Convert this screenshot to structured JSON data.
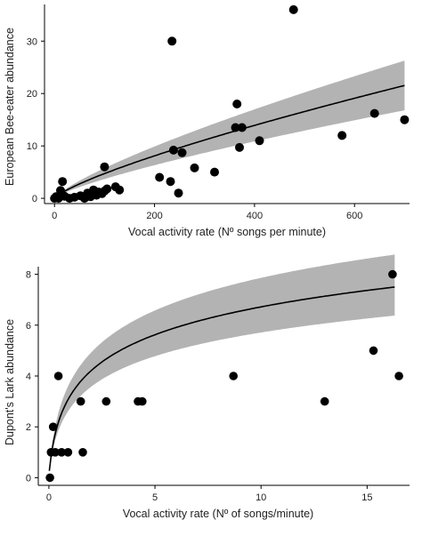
{
  "chart_data": [
    {
      "type": "scatter",
      "xlabel": "Vocal activity rate (Nº songs per minute)",
      "ylabel": "European Bee-eater abundance",
      "xlim": [
        -20,
        710
      ],
      "ylim": [
        -1,
        37
      ],
      "x_ticks": [
        0,
        200,
        400,
        600
      ],
      "y_ticks": [
        0,
        10,
        20,
        30
      ],
      "grid": false,
      "colors": {
        "points": "#000000",
        "band": "#b3b3b3",
        "line": "#000000"
      },
      "fit": {
        "model": "power",
        "a": 0.13,
        "b": 0.78,
        "band_lower_factor": 0.78,
        "band_upper_factor": 1.22
      },
      "points": [
        {
          "x": 0,
          "y": 0
        },
        {
          "x": 3,
          "y": 0.3
        },
        {
          "x": 8,
          "y": 0
        },
        {
          "x": 12,
          "y": 1.5
        },
        {
          "x": 16,
          "y": 3.2
        },
        {
          "x": 20,
          "y": 0.4
        },
        {
          "x": 30,
          "y": 0
        },
        {
          "x": 40,
          "y": 0.2
        },
        {
          "x": 52,
          "y": 0.5
        },
        {
          "x": 60,
          "y": 0
        },
        {
          "x": 66,
          "y": 1
        },
        {
          "x": 72,
          "y": 0.3
        },
        {
          "x": 78,
          "y": 1.6
        },
        {
          "x": 84,
          "y": 0.6
        },
        {
          "x": 88,
          "y": 1.2
        },
        {
          "x": 95,
          "y": 0.9
        },
        {
          "x": 100,
          "y": 1.4
        },
        {
          "x": 100,
          "y": 6
        },
        {
          "x": 105,
          "y": 1.8
        },
        {
          "x": 122,
          "y": 2.2
        },
        {
          "x": 130,
          "y": 1.6
        },
        {
          "x": 210,
          "y": 4
        },
        {
          "x": 232,
          "y": 3.2
        },
        {
          "x": 235,
          "y": 30
        },
        {
          "x": 238,
          "y": 9.2
        },
        {
          "x": 248,
          "y": 1
        },
        {
          "x": 255,
          "y": 8.7
        },
        {
          "x": 280,
          "y": 5.8
        },
        {
          "x": 320,
          "y": 5
        },
        {
          "x": 362,
          "y": 13.5
        },
        {
          "x": 365,
          "y": 18
        },
        {
          "x": 370,
          "y": 9.7
        },
        {
          "x": 375,
          "y": 13.5
        },
        {
          "x": 410,
          "y": 11
        },
        {
          "x": 478,
          "y": 36
        },
        {
          "x": 575,
          "y": 12
        },
        {
          "x": 640,
          "y": 16.2
        },
        {
          "x": 700,
          "y": 15
        }
      ]
    },
    {
      "type": "scatter",
      "xlabel": "Vocal activity rate (Nº of songs/minute)",
      "ylabel": "Dupont's Lark abundance",
      "xlim": [
        -0.5,
        17
      ],
      "ylim": [
        -0.3,
        8.3
      ],
      "x_ticks": [
        0,
        5,
        10,
        15
      ],
      "y_ticks": [
        0,
        2,
        4,
        6,
        8
      ],
      "grid": false,
      "colors": {
        "points": "#000000",
        "band": "#b3b3b3",
        "line": "#000000"
      },
      "fit": {
        "model": "log",
        "a": 0.09,
        "b": 1.62,
        "c": 0.17,
        "band_lower_factor": 0.85,
        "band_upper_factor": 1.17
      },
      "points": [
        {
          "x": 0.05,
          "y": 0
        },
        {
          "x": 0.1,
          "y": 1
        },
        {
          "x": 0.2,
          "y": 2
        },
        {
          "x": 0.3,
          "y": 1
        },
        {
          "x": 0.45,
          "y": 4
        },
        {
          "x": 0.6,
          "y": 1
        },
        {
          "x": 0.9,
          "y": 1
        },
        {
          "x": 1.5,
          "y": 3
        },
        {
          "x": 1.6,
          "y": 1
        },
        {
          "x": 2.7,
          "y": 3
        },
        {
          "x": 4.2,
          "y": 3
        },
        {
          "x": 4.4,
          "y": 3
        },
        {
          "x": 8.7,
          "y": 4
        },
        {
          "x": 13,
          "y": 3
        },
        {
          "x": 15.3,
          "y": 5
        },
        {
          "x": 16.2,
          "y": 8
        },
        {
          "x": 16.5,
          "y": 4
        }
      ]
    }
  ]
}
